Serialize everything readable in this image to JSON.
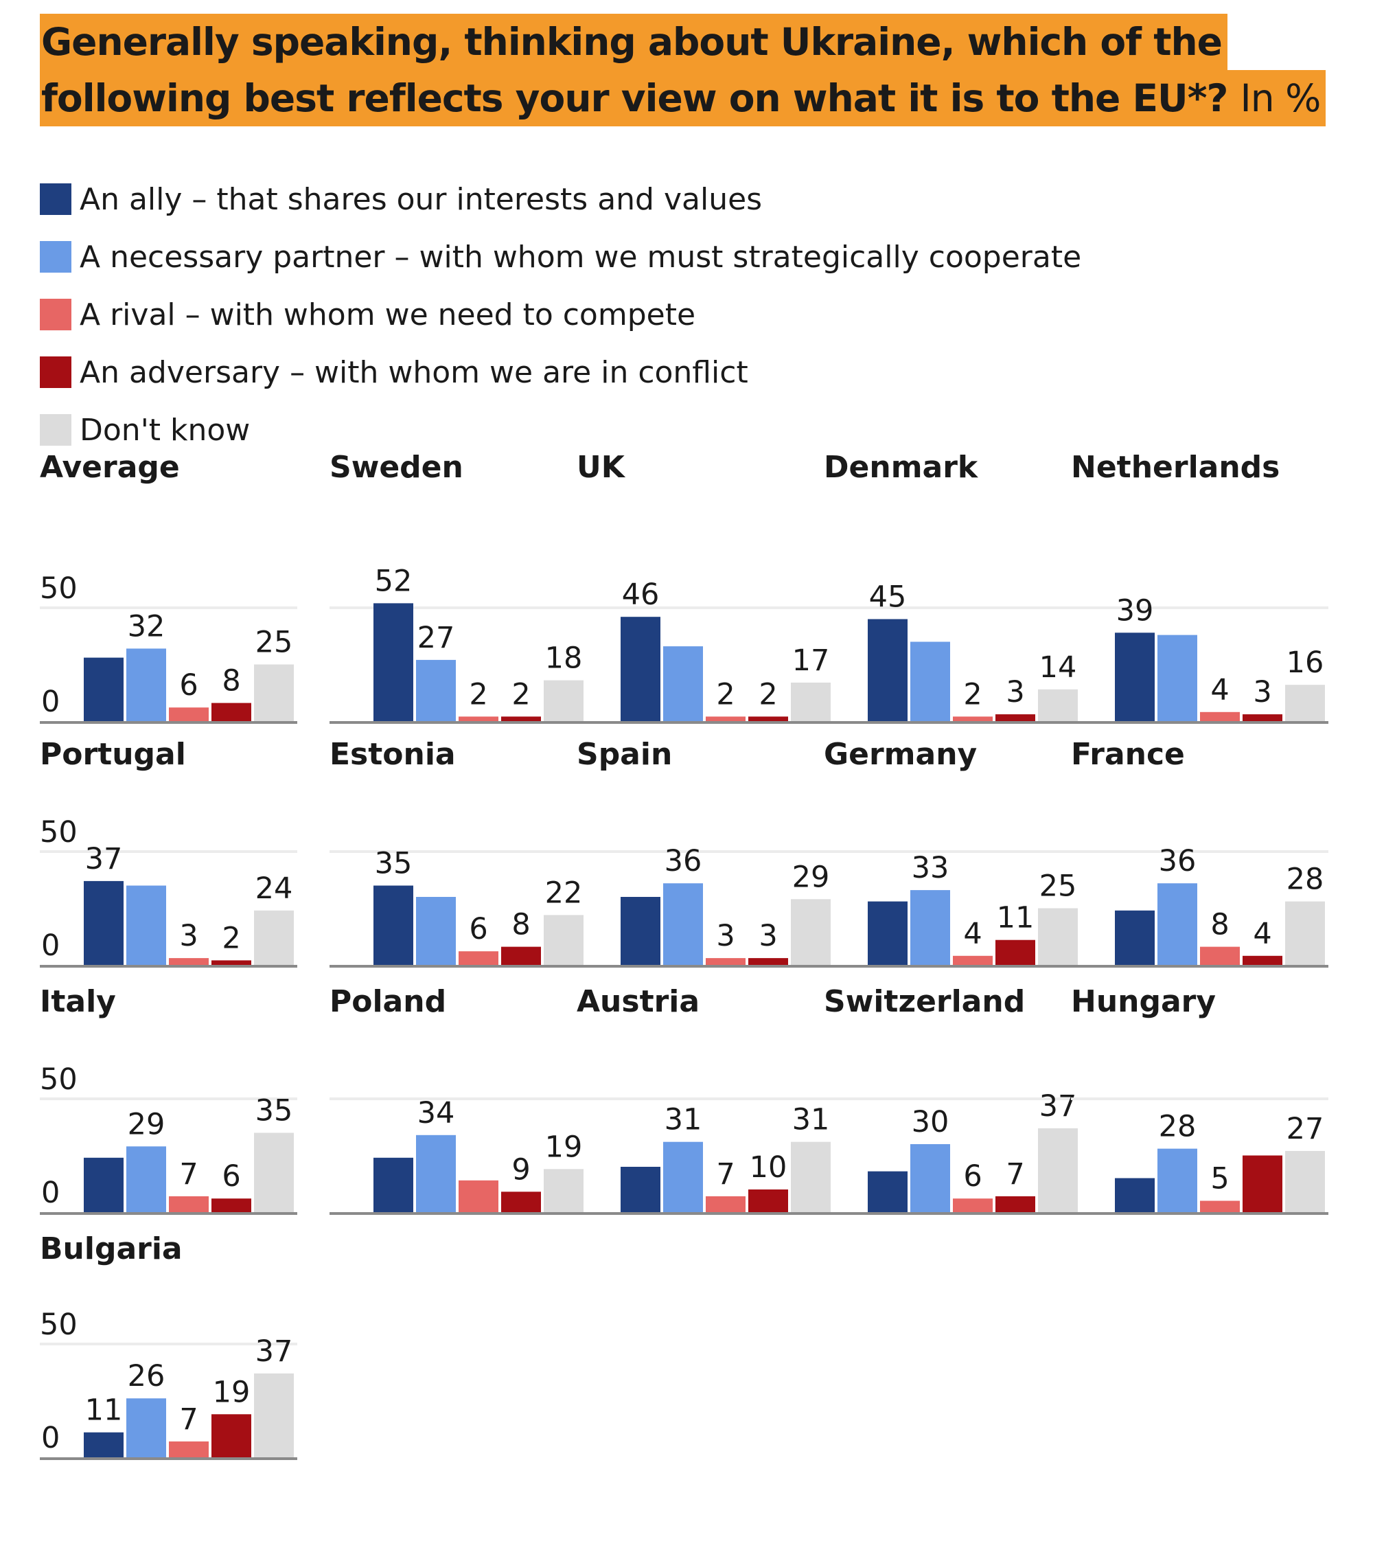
{
  "title": {
    "line1": "Generally speaking, thinking about Ukraine, which of the",
    "line2": "following best reflects your view on what it is to the EU*?",
    "unit": "In %"
  },
  "colors": {
    "ally": "#1f3f7f",
    "partner": "#6a9be6",
    "rival": "#e76664",
    "adversary": "#a50e14",
    "dontknow": "#dcdcdc",
    "title_bg": "#f39a2b"
  },
  "legend": [
    {
      "key": "ally",
      "label": "An ally – that shares our interests and values"
    },
    {
      "key": "partner",
      "label": "A necessary partner – with whom we must strategically cooperate"
    },
    {
      "key": "rival",
      "label": "A rival – with whom we need to compete"
    },
    {
      "key": "adversary",
      "label": "An adversary – with whom we are in conflict"
    },
    {
      "key": "dontknow",
      "label": "Don't know"
    }
  ],
  "chart_data": {
    "type": "bar",
    "layout": "small-multiples",
    "series_order": [
      "ally",
      "partner",
      "rival",
      "adversary",
      "dontknow"
    ],
    "ylim": [
      0,
      50
    ],
    "yticks": [
      "0",
      "50"
    ],
    "grid": true,
    "panels": [
      {
        "name": "Average",
        "values": [
          28,
          32,
          6,
          8,
          25
        ],
        "labels": [
          "",
          "32",
          "6",
          "8",
          "25"
        ]
      },
      {
        "name": "Sweden",
        "values": [
          52,
          27,
          2,
          2,
          18
        ],
        "labels": [
          "52",
          "27",
          "2",
          "2",
          "18"
        ]
      },
      {
        "name": "UK",
        "values": [
          46,
          33,
          2,
          2,
          17
        ],
        "labels": [
          "46",
          "",
          "2",
          "2",
          "17"
        ]
      },
      {
        "name": "Denmark",
        "values": [
          45,
          35,
          2,
          3,
          14
        ],
        "labels": [
          "45",
          "",
          "2",
          "3",
          "14"
        ]
      },
      {
        "name": "Netherlands",
        "values": [
          39,
          38,
          4,
          3,
          16
        ],
        "labels": [
          "39",
          "",
          "4",
          "3",
          "16"
        ]
      },
      {
        "name": "Portugal",
        "values": [
          37,
          35,
          3,
          2,
          24
        ],
        "labels": [
          "37",
          "",
          "3",
          "2",
          "24"
        ]
      },
      {
        "name": "Estonia",
        "values": [
          35,
          30,
          6,
          8,
          22
        ],
        "labels": [
          "35",
          "",
          "6",
          "8",
          "22"
        ]
      },
      {
        "name": "Spain",
        "values": [
          30,
          36,
          3,
          3,
          29
        ],
        "labels": [
          "",
          "36",
          "3",
          "3",
          "29"
        ]
      },
      {
        "name": "Germany",
        "values": [
          28,
          33,
          4,
          11,
          25
        ],
        "labels": [
          "",
          "33",
          "4",
          "11",
          "25"
        ]
      },
      {
        "name": "France",
        "values": [
          24,
          36,
          8,
          4,
          28
        ],
        "labels": [
          "",
          "36",
          "8",
          "4",
          "28"
        ]
      },
      {
        "name": "Italy",
        "values": [
          24,
          29,
          7,
          6,
          35
        ],
        "labels": [
          "",
          "29",
          "7",
          "6",
          "35"
        ]
      },
      {
        "name": "Poland",
        "values": [
          24,
          34,
          14,
          9,
          19
        ],
        "labels": [
          "",
          "34",
          "",
          "9",
          "19"
        ]
      },
      {
        "name": "Austria",
        "values": [
          20,
          31,
          7,
          10,
          31
        ],
        "labels": [
          "",
          "31",
          "7",
          "10",
          "31"
        ]
      },
      {
        "name": "Switzerland",
        "values": [
          18,
          30,
          6,
          7,
          37
        ],
        "labels": [
          "",
          "30",
          "6",
          "7",
          "37"
        ]
      },
      {
        "name": "Hungary",
        "values": [
          15,
          28,
          5,
          25,
          27
        ],
        "labels": [
          "",
          "28",
          "5",
          "",
          "27"
        ]
      },
      {
        "name": "Bulgaria",
        "values": [
          11,
          26,
          7,
          19,
          37
        ],
        "labels": [
          "11",
          "26",
          "7",
          "19",
          "37"
        ]
      }
    ]
  }
}
